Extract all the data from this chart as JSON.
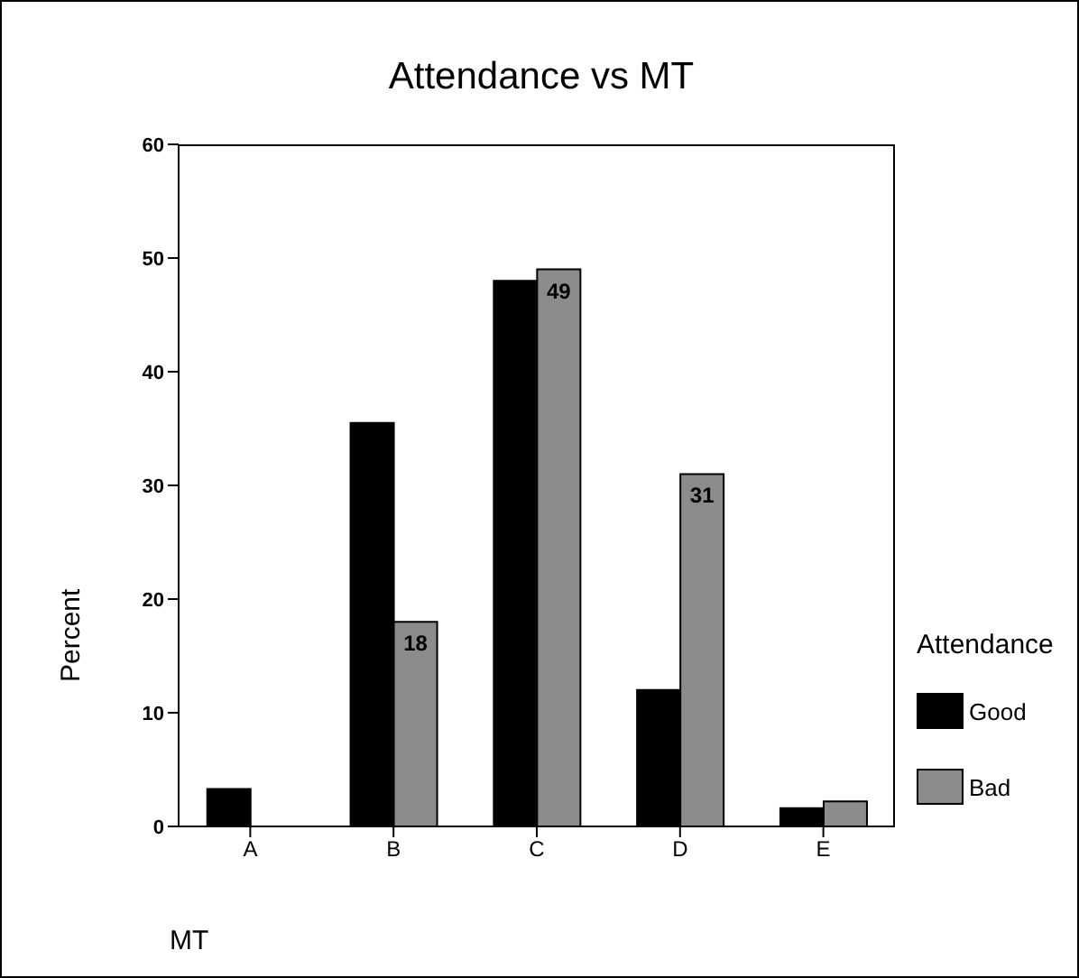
{
  "chart_data": {
    "type": "bar",
    "title": "Attendance vs MT",
    "xlabel": "MT",
    "ylabel": "Percent",
    "legend_title": "Attendance",
    "categories": [
      "A",
      "B",
      "C",
      "D",
      "E"
    ],
    "series": [
      {
        "name": "Good",
        "color": "#000000",
        "values": [
          3.3,
          35.5,
          48,
          12,
          1.6
        ]
      },
      {
        "name": "Bad",
        "color": "#8c8c8c",
        "values": [
          0,
          18,
          49,
          31,
          2.2
        ],
        "value_labels": [
          null,
          "18",
          "49",
          "31",
          null
        ]
      }
    ],
    "ylim": [
      0,
      60
    ],
    "yticks": [
      0,
      10,
      20,
      30,
      40,
      50,
      60
    ],
    "grid": false,
    "legend": "right"
  }
}
